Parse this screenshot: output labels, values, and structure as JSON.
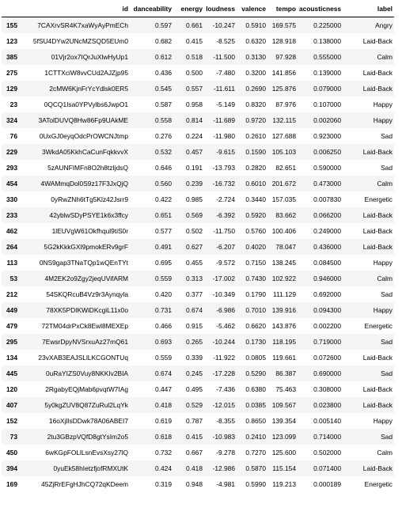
{
  "table": {
    "index_header": "",
    "columns": [
      "id",
      "danceability",
      "energy",
      "loudness",
      "valence",
      "tempo",
      "acousticness",
      "label"
    ],
    "rows": [
      {
        "index": "155",
        "cells": [
          "7CAXrvSR4K7xaWyAyPmECh",
          "0.597",
          "0.661",
          "-10.247",
          "0.5910",
          "169.575",
          "0.225000",
          "Angry"
        ]
      },
      {
        "index": "123",
        "cells": [
          "5fSU4DYw2UNcMZSQD5EUm0",
          "0.682",
          "0.415",
          "-8.525",
          "0.6320",
          "128.918",
          "0.138000",
          "Laid-Back"
        ]
      },
      {
        "index": "385",
        "cells": [
          "01Vjr2ox7IQrJuXlwHyUp1",
          "0.612",
          "0.518",
          "-11.500",
          "0.3130",
          "97.928",
          "0.555000",
          "Calm"
        ]
      },
      {
        "index": "275",
        "cells": [
          "1CTTXciW8vvCUd2AJZjp95",
          "0.436",
          "0.500",
          "-7.480",
          "0.3200",
          "141.856",
          "0.139000",
          "Laid-Back"
        ]
      },
      {
        "index": "129",
        "cells": [
          "2cMW6KjnFrYcYdlsk0ER5",
          "0.545",
          "0.557",
          "-11.611",
          "0.2690",
          "125.876",
          "0.079000",
          "Laid-Back"
        ]
      },
      {
        "index": "23",
        "cells": [
          "0QCQ1Isa0YPVylbs6JwpO1",
          "0.587",
          "0.958",
          "-5.149",
          "0.8320",
          "87.976",
          "0.107000",
          "Happy"
        ]
      },
      {
        "index": "324",
        "cells": [
          "3ATolDUVQ8Hw86Fp9UAkME",
          "0.558",
          "0.814",
          "-11.689",
          "0.9720",
          "132.115",
          "0.002060",
          "Happy"
        ]
      },
      {
        "index": "76",
        "cells": [
          "0UxGJ0eyqOdcPrOWCNJtmp",
          "0.276",
          "0.224",
          "-11.980",
          "0.2610",
          "127.688",
          "0.923000",
          "Sad"
        ]
      },
      {
        "index": "229",
        "cells": [
          "3WkdA05KkhCaCunFqkkvvX",
          "0.532",
          "0.457",
          "-9.615",
          "0.1590",
          "105.103",
          "0.006250",
          "Laid-Back"
        ]
      },
      {
        "index": "293",
        "cells": [
          "5zAUNFIMFn8O2h8tzIjdsQ",
          "0.646",
          "0.191",
          "-13.793",
          "0.2820",
          "82.651",
          "0.590000",
          "Sad"
        ]
      },
      {
        "index": "454",
        "cells": [
          "4WAMmqDol0S9z17F3JxQjQ",
          "0.560",
          "0.239",
          "-16.732",
          "0.6010",
          "201.672",
          "0.473000",
          "Calm"
        ]
      },
      {
        "index": "330",
        "cells": [
          "0yRwZNh6tTg5Klz42Jsrr9",
          "0.422",
          "0.985",
          "-2.724",
          "0.3440",
          "157.035",
          "0.007830",
          "Energetic"
        ]
      },
      {
        "index": "233",
        "cells": [
          "42yblwSDyPSYE1k6x3ffcy",
          "0.651",
          "0.569",
          "-6.392",
          "0.5920",
          "83.662",
          "0.066200",
          "Laid-Back"
        ]
      },
      {
        "index": "462",
        "cells": [
          "1lEUVgW61Okfhqul9tiS0r",
          "0.577",
          "0.502",
          "-11.750",
          "0.5760",
          "100.406",
          "0.249000",
          "Laid-Back"
        ]
      },
      {
        "index": "264",
        "cells": [
          "5G2kKkkGXI9pmokERv9grF",
          "0.491",
          "0.627",
          "-6.207",
          "0.4020",
          "78.047",
          "0.436000",
          "Laid-Back"
        ]
      },
      {
        "index": "113",
        "cells": [
          "0NS9gap3TNaTQp1wQEnTYt",
          "0.695",
          "0.455",
          "-9.572",
          "0.7150",
          "138.245",
          "0.084500",
          "Happy"
        ]
      },
      {
        "index": "53",
        "cells": [
          "4M2EK2o9Zgy2jeqUVifARM",
          "0.559",
          "0.313",
          "-17.002",
          "0.7430",
          "102.922",
          "0.946000",
          "Calm"
        ]
      },
      {
        "index": "212",
        "cells": [
          "54SKQRcuB4Vz9r3Aynqyla",
          "0.420",
          "0.377",
          "-10.349",
          "0.1790",
          "111.129",
          "0.692000",
          "Sad"
        ]
      },
      {
        "index": "449",
        "cells": [
          "78XK5PDIKWiDKcgiL11x0o",
          "0.731",
          "0.674",
          "-6.986",
          "0.7010",
          "139.916",
          "0.094300",
          "Happy"
        ]
      },
      {
        "index": "479",
        "cells": [
          "72TM04drPxCk8Ewl8MEXEp",
          "0.466",
          "0.915",
          "-5.462",
          "0.6620",
          "143.876",
          "0.002200",
          "Energetic"
        ]
      },
      {
        "index": "295",
        "cells": [
          "7EwsrDpyNVSrxuAz27mQ61",
          "0.693",
          "0.265",
          "-10.244",
          "0.1730",
          "118.195",
          "0.719000",
          "Sad"
        ]
      },
      {
        "index": "134",
        "cells": [
          "23vXAB3EAJSLlLKCGONTUq",
          "0.559",
          "0.339",
          "-11.922",
          "0.0805",
          "119.661",
          "0.072600",
          "Laid-Back"
        ]
      },
      {
        "index": "445",
        "cells": [
          "0uRaYIZS0Vuy8NKKIv2BIA",
          "0.674",
          "0.245",
          "-17.228",
          "0.5290",
          "86.387",
          "0.690000",
          "Sad"
        ]
      },
      {
        "index": "120",
        "cells": [
          "2RgabyEQjMab6pvqtW7IAg",
          "0.447",
          "0.495",
          "-7.436",
          "0.6380",
          "75.463",
          "0.308000",
          "Laid-Back"
        ]
      },
      {
        "index": "407",
        "cells": [
          "5y0kgZUV8Q87ZuRul2LqYk",
          "0.418",
          "0.529",
          "-12.015",
          "0.0385",
          "109.567",
          "0.023800",
          "Laid-Back"
        ]
      },
      {
        "index": "152",
        "cells": [
          "16oXjIlsDDwk78A06ABEI7",
          "0.619",
          "0.787",
          "-8.355",
          "0.8650",
          "139.354",
          "0.005140",
          "Happy"
        ]
      },
      {
        "index": "73",
        "cells": [
          "2tu3GBzpVQfD8gtYsIm2o5",
          "0.618",
          "0.415",
          "-10.983",
          "0.2410",
          "123.099",
          "0.714000",
          "Sad"
        ]
      },
      {
        "index": "450",
        "cells": [
          "6wKGpFOLlLsnEvsXsy27lQ",
          "0.732",
          "0.667",
          "-9.278",
          "0.7270",
          "125.600",
          "0.502000",
          "Calm"
        ]
      },
      {
        "index": "394",
        "cells": [
          "0yuEk58hIetzfjofRMXUtK",
          "0.424",
          "0.418",
          "-12.986",
          "0.5870",
          "115.154",
          "0.071400",
          "Laid-Back"
        ]
      },
      {
        "index": "169",
        "cells": [
          "45ZjRrEFgHJhCQ72qKDeem",
          "0.319",
          "0.948",
          "-4.981",
          "0.5990",
          "119.213",
          "0.000189",
          "Energetic"
        ]
      }
    ]
  }
}
